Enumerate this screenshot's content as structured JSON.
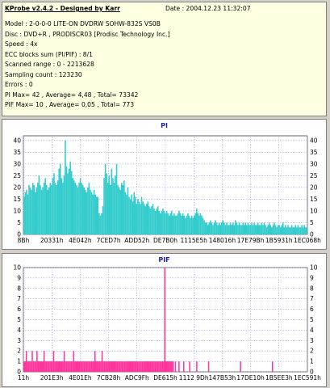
{
  "info": {
    "app_title": "KProbe v2.4.2 - Designed by Karr",
    "date": "Date : 2004.12.23 11:32:07",
    "lines": [
      "Model : 2-0-0-0 LITE-ON DVDRW SOHW-832S  VS0B",
      "Disc : DVD+R , PRODISCR03 [Prodisc Technology Inc.]",
      "Speed : 4x",
      "ECC blocks sum (PI/PIF) : 8/1",
      "Scanned range : 0 - 2213628",
      "Sampling count : 123230",
      "Errors : 0",
      "PI Max= 42 , Average= 4,48 , Total= 73342",
      "PIF Max= 10 , Average= 0,05 , Total= 773"
    ]
  },
  "chart_data": [
    {
      "type": "area",
      "title": "PI",
      "ylim": [
        0,
        42
      ],
      "yticks": [
        0,
        5,
        10,
        15,
        20,
        25,
        30,
        35,
        40
      ],
      "xticks": [
        "8Bh",
        "20331h",
        "4E042h",
        "7CED7h",
        "ADD52h",
        "DE7B0h",
        "1115E5h",
        "148016h",
        "17E79Bh",
        "1B5931h",
        "1EC068h"
      ],
      "grid": true,
      "color": "#33cccc",
      "values": [
        16,
        18,
        19,
        17,
        21,
        20,
        19,
        22,
        21,
        18,
        20,
        22,
        25,
        21,
        19,
        20,
        22,
        24,
        21,
        19,
        20,
        22,
        21,
        24,
        26,
        22,
        21,
        23,
        28,
        30,
        24,
        22,
        25,
        40,
        29,
        26,
        28,
        31,
        27,
        24,
        23,
        22,
        21,
        20,
        22,
        24,
        22,
        21,
        20,
        19,
        18,
        20,
        22,
        19,
        18,
        17,
        19,
        17,
        16,
        16,
        9,
        8,
        9,
        12,
        24,
        30,
        26,
        22,
        25,
        21,
        28,
        24,
        22,
        25,
        30,
        21,
        20,
        19,
        22,
        21,
        23,
        18,
        17,
        20,
        16,
        15,
        17,
        14,
        18,
        16,
        13,
        15,
        14,
        13,
        16,
        14,
        13,
        12,
        13,
        14,
        12,
        11,
        12,
        13,
        11,
        10,
        11,
        12,
        10,
        9,
        10,
        11,
        10,
        9,
        10,
        9,
        8,
        9,
        10,
        8,
        9,
        8,
        8,
        9,
        10,
        9,
        8,
        9,
        8,
        7,
        8,
        9,
        8,
        7,
        8,
        7,
        8,
        9,
        11,
        9,
        8,
        9,
        8,
        7,
        6,
        5,
        5,
        4,
        5,
        6,
        5,
        4,
        5,
        6,
        5,
        4,
        5,
        4,
        5,
        6,
        5,
        4,
        5,
        4,
        4,
        5,
        4,
        5,
        4,
        6,
        5,
        4,
        5,
        4,
        4,
        5,
        4,
        5,
        4,
        5,
        4,
        4,
        5,
        4,
        5,
        4,
        4,
        5,
        4,
        4,
        5,
        4,
        5,
        4,
        3,
        4,
        5,
        4,
        3,
        4,
        5,
        4,
        3,
        4,
        4,
        3,
        4,
        5,
        3,
        4,
        3,
        4,
        3,
        3,
        4,
        3,
        3,
        4,
        3,
        4,
        3,
        3,
        4,
        3,
        4,
        3,
        3
      ]
    },
    {
      "type": "bar",
      "title": "PIF",
      "ylim": [
        0,
        10
      ],
      "yticks": [
        0,
        1,
        2,
        3,
        4,
        5,
        6,
        7,
        8,
        9,
        10
      ],
      "xticks": [
        "11h",
        "201E3h",
        "4E01Eh",
        "7CB28h",
        "ADC9Fh",
        "DE615h",
        "1112 9Dh",
        "147B53h",
        "17DE10h",
        "1B5EE3h",
        "1EC591h"
      ],
      "grid": true,
      "color": "#ff3399",
      "values": [
        1,
        1,
        2,
        1,
        1,
        1,
        1,
        2,
        1,
        1,
        1,
        2,
        1,
        1,
        1,
        1,
        1,
        2,
        1,
        1,
        1,
        1,
        1,
        1,
        1,
        2,
        1,
        1,
        1,
        1,
        1,
        1,
        1,
        1,
        2,
        1,
        1,
        1,
        1,
        1,
        1,
        1,
        2,
        1,
        1,
        1,
        1,
        1,
        1,
        1,
        1,
        1,
        1,
        1,
        1,
        1,
        1,
        1,
        1,
        1,
        2,
        1,
        1,
        1,
        1,
        1,
        2,
        1,
        1,
        1,
        1,
        1,
        1,
        1,
        1,
        1,
        1,
        1,
        1,
        1,
        1,
        1,
        1,
        1,
        1,
        1,
        1,
        1,
        1,
        1,
        1,
        1,
        1,
        1,
        1,
        1,
        1,
        1,
        1,
        1,
        1,
        1,
        1,
        1,
        1,
        1,
        1,
        1,
        1,
        1,
        1,
        1,
        1,
        1,
        1,
        1,
        1,
        1,
        1,
        10,
        1,
        1,
        1,
        1,
        1,
        1,
        1,
        0,
        1,
        0,
        0,
        1,
        0,
        0,
        0,
        1,
        0,
        0,
        0,
        0,
        1,
        0,
        0,
        0,
        0,
        0,
        1,
        0,
        0,
        0,
        0,
        0,
        0,
        0,
        0,
        0,
        1,
        0,
        0,
        0,
        0,
        0,
        0,
        0,
        0,
        0,
        0,
        0,
        0,
        0,
        0,
        0,
        0,
        0,
        0,
        0,
        0,
        0,
        0,
        0,
        0,
        0,
        0,
        1,
        0,
        0,
        0,
        0,
        0,
        0,
        0,
        0,
        0,
        0,
        0,
        0,
        0,
        0,
        0,
        0,
        0,
        0,
        0,
        0,
        0,
        0,
        0,
        0,
        0,
        0,
        1,
        0,
        0,
        0,
        0,
        0,
        0,
        0,
        0,
        0,
        0,
        0,
        0,
        0,
        0,
        0,
        0,
        0,
        0,
        0,
        0,
        0,
        0,
        0,
        0,
        0,
        0,
        0,
        0,
        0
      ]
    }
  ]
}
